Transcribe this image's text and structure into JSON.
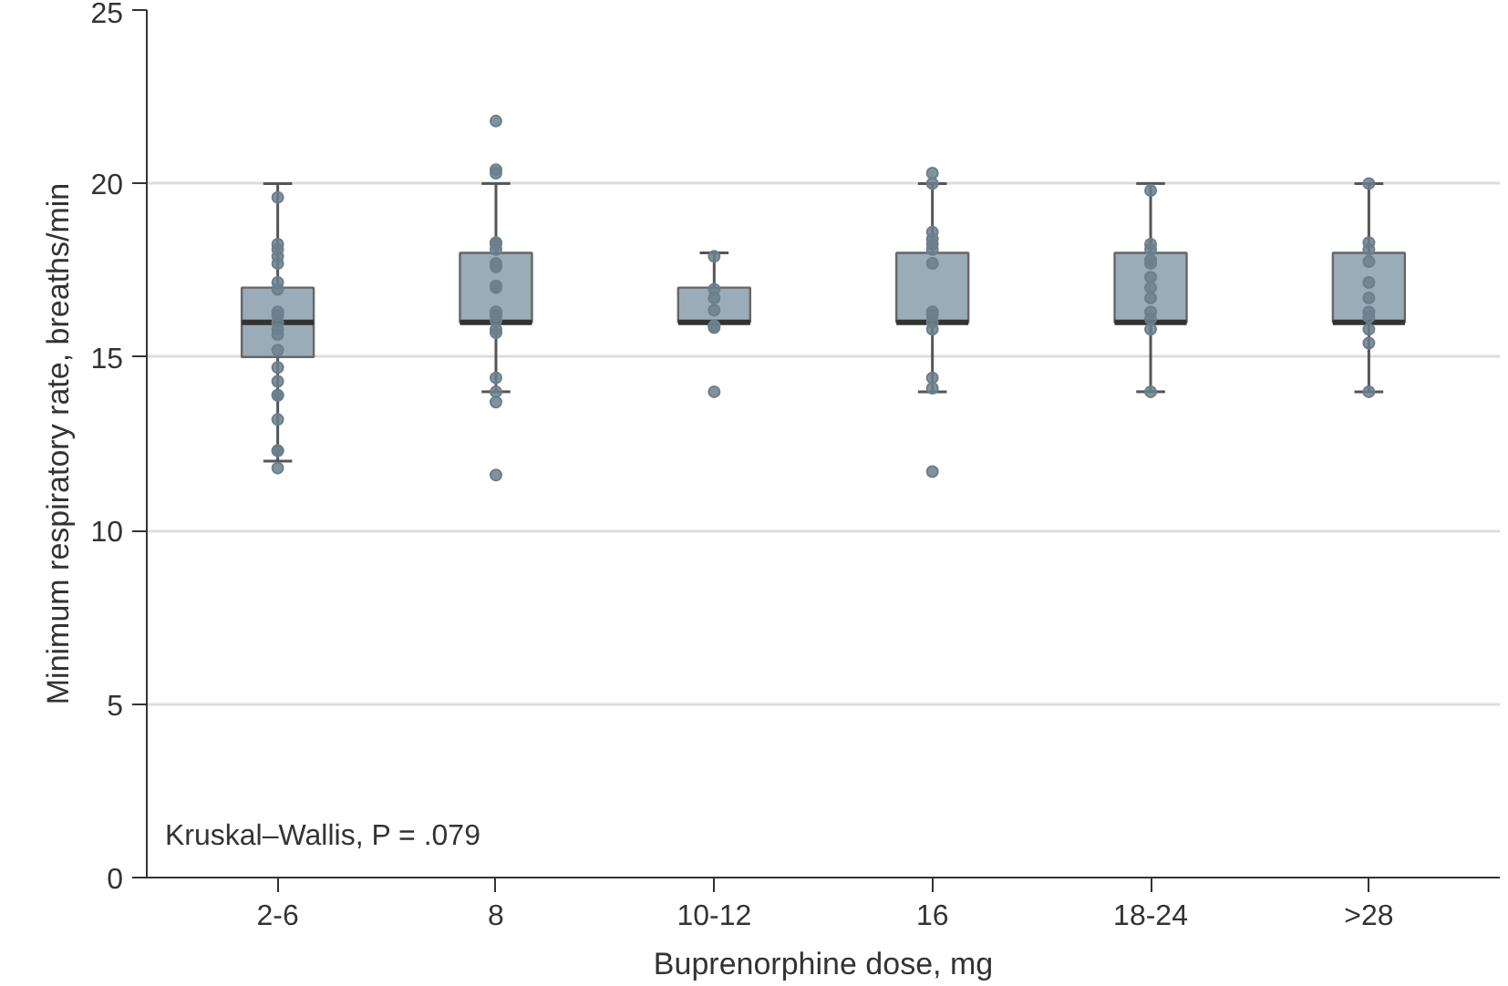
{
  "chart_data": {
    "type": "box",
    "xlabel": "Buprenorphine dose, mg",
    "ylabel": "Minimum respiratory rate, breaths/min",
    "categories": [
      "2-6",
      "8",
      "10-12",
      "16",
      "18-24",
      ">28"
    ],
    "color": "#9aacb8",
    "boxes": [
      {
        "low": 12,
        "q1": 15,
        "median": 16,
        "q3": 17,
        "high": 20
      },
      {
        "low": 14,
        "q1": 16,
        "median": 16,
        "q3": 18,
        "high": 20
      },
      {
        "low": 16,
        "q1": 16,
        "median": 16,
        "q3": 17,
        "high": 18
      },
      {
        "low": 14,
        "q1": 16,
        "median": 16,
        "q3": 18,
        "high": 20
      },
      {
        "low": 14,
        "q1": 16,
        "median": 16,
        "q3": 18,
        "high": 20
      },
      {
        "low": 14,
        "q1": 16,
        "median": 16,
        "q3": 18,
        "high": 20
      }
    ],
    "series": [
      {
        "type": "scatter",
        "color": "#6b7f8c",
        "x": [
          "2-6",
          "2-6",
          "2-6",
          "2-6",
          "2-6",
          "2-6",
          "2-6",
          "2-6",
          "2-6",
          "2-6",
          "2-6",
          "2-6",
          "2-6",
          "2-6",
          "2-6",
          "2-6",
          "2-6",
          "2-6",
          "2-6",
          "2-6",
          "2-6",
          "8",
          "8",
          "8",
          "8",
          "8",
          "8",
          "8",
          "8",
          "8",
          "8",
          "8",
          "8",
          "8",
          "8",
          "8",
          "8",
          "8",
          "8",
          "8",
          "10-12",
          "10-12",
          "10-12",
          "10-12",
          "10-12",
          "10-12",
          "10-12",
          "16",
          "16",
          "16",
          "16",
          "16",
          "16",
          "16",
          "16",
          "16",
          "16",
          "16",
          "16",
          "16",
          "16",
          "18-24",
          "18-24",
          "18-24",
          "18-24",
          "18-24",
          "18-24",
          "18-24",
          "18-24",
          "18-24",
          "18-24",
          "18-24",
          "18-24",
          ">28",
          ">28",
          ">28",
          ">28",
          ">28",
          ">28",
          ">28",
          ">28",
          ">28",
          ">28",
          ">28"
        ],
        "values": [
          19.6,
          18.25,
          18.1,
          17.7,
          17.9,
          17.15,
          16.95,
          16.3,
          16.2,
          16.0,
          15.8,
          15.65,
          15.2,
          14.7,
          14.3,
          13.9,
          13.9,
          13.2,
          12.3,
          12.3,
          11.8,
          21.8,
          20.4,
          20.3,
          18.3,
          18.25,
          18.1,
          17.7,
          17.6,
          17.05,
          17.0,
          16.3,
          16.2,
          16.05,
          15.8,
          15.7,
          14.4,
          14.0,
          13.7,
          11.6,
          17.9,
          16.95,
          16.7,
          16.35,
          15.85,
          15.9,
          14.0,
          20.3,
          20.0,
          18.6,
          18.4,
          18.25,
          18.1,
          17.7,
          16.3,
          16.2,
          16.0,
          15.8,
          14.4,
          14.1,
          11.7,
          19.8,
          18.25,
          18.1,
          17.8,
          17.7,
          17.3,
          17.0,
          16.7,
          16.3,
          16.1,
          15.8,
          14.0,
          20.0,
          18.3,
          18.1,
          17.75,
          17.15,
          16.7,
          16.3,
          16.15,
          15.8,
          15.4,
          14.0
        ]
      }
    ],
    "marker": "circle",
    "ylim": [
      0,
      25
    ],
    "yticks": [
      0,
      5,
      10,
      15,
      20,
      25
    ],
    "grid": "y",
    "annotations": [
      "Kruskal–Wallis, P = .079"
    ]
  }
}
